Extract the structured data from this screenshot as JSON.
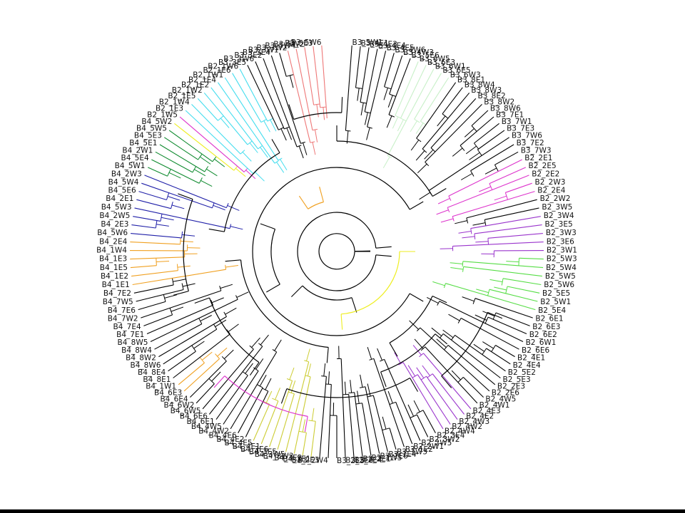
{
  "colors": {
    "background": "#ffffff",
    "default_branch": "#000000",
    "orange": "#f0a020",
    "olive": "#cccc33",
    "purple": "#9933cc",
    "magenta": "#dd33cc",
    "green": "#55dd44",
    "pale_green": "#c8f0c8",
    "salmon": "#ee7777",
    "cyan": "#44ddee",
    "yellow": "#eeee22",
    "navy": "#1f1fa8",
    "dark_green": "#0e8a2e"
  },
  "leaves": [
    {
      "label": "B3_5W1",
      "color": "black"
    },
    {
      "label": "B3_4E1",
      "color": "black"
    },
    {
      "label": "B3_4E3",
      "color": "black"
    },
    {
      "label": "B3_4E4",
      "color": "black"
    },
    {
      "label": "B3_4E5",
      "color": "black"
    },
    {
      "label": "B3_4W6",
      "color": "black"
    },
    {
      "label": "B3_4W3",
      "color": "black"
    },
    {
      "label": "B3_5E6",
      "color": "black"
    },
    {
      "label": "B3_6W5",
      "color": "pale_green"
    },
    {
      "label": "B3_6E3",
      "color": "pale_green"
    },
    {
      "label": "B3_6W1",
      "color": "pale_green"
    },
    {
      "label": "B3_6E5",
      "color": "pale_green"
    },
    {
      "label": "B3_6W3",
      "color": "pale_green"
    },
    {
      "label": "B3_8E1",
      "color": "black"
    },
    {
      "label": "B3_8W4",
      "color": "black"
    },
    {
      "label": "B3_8W3",
      "color": "black"
    },
    {
      "label": "B3_8E2",
      "color": "black"
    },
    {
      "label": "B3_8W2",
      "color": "black"
    },
    {
      "label": "B3_8W6",
      "color": "black"
    },
    {
      "label": "B3_7E1",
      "color": "black"
    },
    {
      "label": "B3_7W1",
      "color": "black"
    },
    {
      "label": "B3_7E3",
      "color": "black"
    },
    {
      "label": "B3_7W6",
      "color": "black"
    },
    {
      "label": "B3_7E2",
      "color": "black"
    },
    {
      "label": "B3_7W3",
      "color": "black"
    },
    {
      "label": "B2_2E1",
      "color": "magenta"
    },
    {
      "label": "B2_2E5",
      "color": "magenta"
    },
    {
      "label": "B2_2E2",
      "color": "magenta"
    },
    {
      "label": "B2_2W3",
      "color": "magenta"
    },
    {
      "label": "B2_2E4",
      "color": "magenta"
    },
    {
      "label": "B2_2W2",
      "color": "black"
    },
    {
      "label": "B2_3W5",
      "color": "black"
    },
    {
      "label": "B2_3W4",
      "color": "purple"
    },
    {
      "label": "B2_3E5",
      "color": "purple"
    },
    {
      "label": "B2_3W3",
      "color": "purple"
    },
    {
      "label": "B2_3E6",
      "color": "purple"
    },
    {
      "label": "B2_3W1",
      "color": "purple"
    },
    {
      "label": "B2_5W3",
      "color": "green"
    },
    {
      "label": "B2_5W4",
      "color": "green"
    },
    {
      "label": "B2_5W5",
      "color": "green"
    },
    {
      "label": "B2_5W6",
      "color": "green"
    },
    {
      "label": "B2_5E5",
      "color": "green"
    },
    {
      "label": "B2_5W1",
      "color": "green"
    },
    {
      "label": "B2_5E4",
      "color": "green"
    },
    {
      "label": "B2_6E1",
      "color": "black"
    },
    {
      "label": "B2_6E3",
      "color": "black"
    },
    {
      "label": "B2_6E2",
      "color": "black"
    },
    {
      "label": "B2_6W1",
      "color": "black"
    },
    {
      "label": "B2_6E6",
      "color": "black"
    },
    {
      "label": "B2_4E1",
      "color": "black"
    },
    {
      "label": "B2_4E4",
      "color": "black"
    },
    {
      "label": "B2_5E2",
      "color": "black"
    },
    {
      "label": "B2_5E3",
      "color": "black"
    },
    {
      "label": "B2_2E3",
      "color": "black"
    },
    {
      "label": "B2_2E6",
      "color": "black"
    },
    {
      "label": "B2_4W5",
      "color": "black"
    },
    {
      "label": "B2_4W1",
      "color": "black"
    },
    {
      "label": "B2_4E3",
      "color": "purple"
    },
    {
      "label": "B2_4E2",
      "color": "purple"
    },
    {
      "label": "B2_4W3",
      "color": "purple"
    },
    {
      "label": "B2_4W2",
      "color": "purple"
    },
    {
      "label": "B2_4W4",
      "color": "purple"
    },
    {
      "label": "B2_3E4",
      "color": "black"
    },
    {
      "label": "B2_3W2",
      "color": "black"
    },
    {
      "label": "B2_2W5",
      "color": "black"
    },
    {
      "label": "B2_2W1",
      "color": "black"
    },
    {
      "label": "B3_1E2",
      "color": "black"
    },
    {
      "label": "B3_1W3",
      "color": "black"
    },
    {
      "label": "B3_1E4",
      "color": "black"
    },
    {
      "label": "B3_1E6",
      "color": "black"
    },
    {
      "label": "B3_1W5",
      "color": "black"
    },
    {
      "label": "B3_2E1",
      "color": "black"
    },
    {
      "label": "B3_2E4",
      "color": "black"
    },
    {
      "label": "B3_2E6",
      "color": "black"
    },
    {
      "label": "B3_2E5",
      "color": "black"
    },
    {
      "label": "B3_2W4",
      "color": "black"
    },
    {
      "label": "B3_2E3",
      "color": "black"
    },
    {
      "label": "B4_3E1",
      "color": "olive"
    },
    {
      "label": "B4_3E2",
      "color": "olive"
    },
    {
      "label": "B4_3W3",
      "color": "olive"
    },
    {
      "label": "B4_3W5",
      "color": "olive"
    },
    {
      "label": "B4_3E5",
      "color": "olive"
    },
    {
      "label": "B4_3E6",
      "color": "olive"
    },
    {
      "label": "B4_4E1",
      "color": "olive"
    },
    {
      "label": "B4_4E5",
      "color": "olive"
    },
    {
      "label": "B4_4E2",
      "color": "black"
    },
    {
      "label": "B4_4E6",
      "color": "black"
    },
    {
      "label": "B4_4W2",
      "color": "black"
    },
    {
      "label": "B4_4W5",
      "color": "black"
    },
    {
      "label": "B4_6E1",
      "color": "black"
    },
    {
      "label": "B4_6E6",
      "color": "black"
    },
    {
      "label": "B4_6W5",
      "color": "black"
    },
    {
      "label": "B4_6W2",
      "color": "black"
    },
    {
      "label": "B4_6E4",
      "color": "black"
    },
    {
      "label": "B4_6E3",
      "color": "orange"
    },
    {
      "label": "B4_1W1",
      "color": "orange"
    },
    {
      "label": "B4_8E1",
      "color": "black"
    },
    {
      "label": "B4_8E4",
      "color": "black"
    },
    {
      "label": "B4_8W6",
      "color": "black"
    },
    {
      "label": "B4_8W2",
      "color": "black"
    },
    {
      "label": "B4_8W4",
      "color": "black"
    },
    {
      "label": "B4_8W5",
      "color": "black"
    },
    {
      "label": "B4_7E1",
      "color": "black"
    },
    {
      "label": "B4_7E4",
      "color": "black"
    },
    {
      "label": "B4_7W2",
      "color": "black"
    },
    {
      "label": "B4_7E6",
      "color": "black"
    },
    {
      "label": "B4_7W5",
      "color": "black"
    },
    {
      "label": "B4_7E2",
      "color": "black"
    },
    {
      "label": "B4_1E1",
      "color": "orange"
    },
    {
      "label": "B4_1E2",
      "color": "orange"
    },
    {
      "label": "B4_1E5",
      "color": "orange"
    },
    {
      "label": "B4_1E3",
      "color": "orange"
    },
    {
      "label": "B4_1W4",
      "color": "orange"
    },
    {
      "label": "B4_2E4",
      "color": "orange"
    },
    {
      "label": "B4_5W6",
      "color": "navy"
    },
    {
      "label": "B4_2E3",
      "color": "navy"
    },
    {
      "label": "B4_2W5",
      "color": "navy"
    },
    {
      "label": "B4_5W3",
      "color": "navy"
    },
    {
      "label": "B4_2E1",
      "color": "navy"
    },
    {
      "label": "B4_5E6",
      "color": "navy"
    },
    {
      "label": "B4_5W4",
      "color": "navy"
    },
    {
      "label": "B4_2W3",
      "color": "navy"
    },
    {
      "label": "B4_5W1",
      "color": "dark_green"
    },
    {
      "label": "B4_5E4",
      "color": "dark_green"
    },
    {
      "label": "B4_2W1",
      "color": "dark_green"
    },
    {
      "label": "B4_5E1",
      "color": "dark_green"
    },
    {
      "label": "B4_5E3",
      "color": "dark_green"
    },
    {
      "label": "B4_5W5",
      "color": "dark_green"
    },
    {
      "label": "B4_5W2",
      "color": "yellow"
    },
    {
      "label": "B2_1W5",
      "color": "magenta"
    },
    {
      "label": "B2_1E3",
      "color": "cyan"
    },
    {
      "label": "B2_1W4",
      "color": "cyan"
    },
    {
      "label": "B2_1E5",
      "color": "cyan"
    },
    {
      "label": "B2_1W2",
      "color": "cyan"
    },
    {
      "label": "B2_1E2",
      "color": "cyan"
    },
    {
      "label": "B2_1E4",
      "color": "cyan"
    },
    {
      "label": "B2_1W1",
      "color": "cyan"
    },
    {
      "label": "B2_1E6",
      "color": "cyan"
    },
    {
      "label": "B2_1W6",
      "color": "cyan"
    },
    {
      "label": "B3_3E5",
      "color": "black"
    },
    {
      "label": "B3_3W6",
      "color": "black"
    },
    {
      "label": "B3_3E2",
      "color": "black"
    },
    {
      "label": "B3_3E4",
      "color": "black"
    },
    {
      "label": "B3_3W1",
      "color": "black"
    },
    {
      "label": "B3_3W2",
      "color": "salmon"
    },
    {
      "label": "B3_5W4",
      "color": "salmon"
    },
    {
      "label": "B3_5W2",
      "color": "salmon"
    },
    {
      "label": "B3_5E3",
      "color": "salmon"
    },
    {
      "label": "B3_5W6",
      "color": "salmon"
    }
  ],
  "rings": [
    {
      "r": 25,
      "from": 0,
      "to": 359,
      "color": "black"
    },
    {
      "r": 55,
      "from": 5,
      "to": 355,
      "color": "black"
    },
    {
      "r": 68,
      "from": 72,
      "to": 135,
      "color": "black"
    },
    {
      "r": 72,
      "from": 236,
      "to": 255,
      "color": "orange"
    },
    {
      "r": 88,
      "from": 0,
      "to": 86,
      "color": "yellow"
    },
    {
      "r": 92,
      "from": 150,
      "to": 200,
      "color": "black"
    },
    {
      "r": 118,
      "from": 30,
      "to": 330,
      "color": "black"
    },
    {
      "r": 135,
      "from": 95,
      "to": 175,
      "color": "black"
    },
    {
      "r": 148,
      "from": 25,
      "to": 60,
      "color": "black"
    },
    {
      "r": 155,
      "from": 270,
      "to": 330,
      "color": "black"
    },
    {
      "r": 160,
      "from": 190,
      "to": 240,
      "color": "black"
    },
    {
      "r": 180,
      "from": 40,
      "to": 70,
      "color": "black"
    },
    {
      "r": 190,
      "from": 125,
      "to": 160,
      "color": "black"
    },
    {
      "r": 195,
      "from": 252,
      "to": 272,
      "color": "black"
    },
    {
      "r": 205,
      "from": 60,
      "to": 110,
      "color": "black"
    },
    {
      "r": 215,
      "from": 165,
      "to": 200,
      "color": "black"
    },
    {
      "r": 228,
      "from": 22,
      "to": 50,
      "color": "black"
    },
    {
      "r": 235,
      "from": 100,
      "to": 132,
      "color": "magenta"
    }
  ]
}
